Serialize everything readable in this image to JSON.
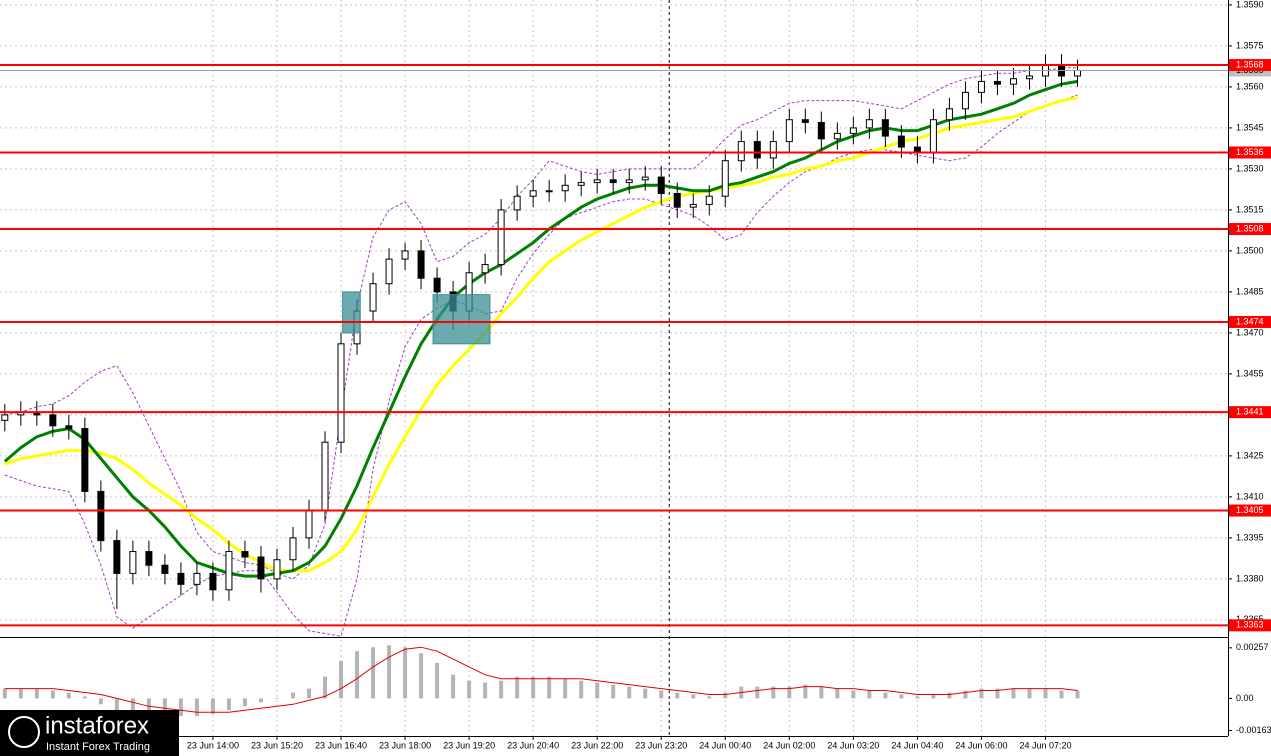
{
  "chart_data": [
    {
      "type": "candlestick",
      "xlim": [
        -0.3,
        76.4
      ],
      "ylim": [
        1.33591,
        1.35918
      ],
      "grid": true,
      "xticks": [
        {
          "value": 13,
          "label": "23 Jun 14:00"
        },
        {
          "value": 17,
          "label": "23 Jun 15:20"
        },
        {
          "value": 21,
          "label": "23 Jun 16:40"
        },
        {
          "value": 25,
          "label": "23 Jun 18:00"
        },
        {
          "value": 29,
          "label": "23 Jun 19:20"
        },
        {
          "value": 33,
          "label": "23 Jun 20:40"
        },
        {
          "value": 37,
          "label": "23 Jun 22:00"
        },
        {
          "value": 41,
          "label": "23 Jun 23:20"
        },
        {
          "value": 45,
          "label": "24 Jun 00:40"
        },
        {
          "value": 49,
          "label": "24 Jun 02:00"
        },
        {
          "value": 53,
          "label": "24 Jun 03:20"
        },
        {
          "value": 57,
          "label": "24 Jun 04:40"
        },
        {
          "value": 61,
          "label": "24 Jun 06:00"
        },
        {
          "value": 65,
          "label": "24 Jun 07:20"
        }
      ],
      "yticks": [
        {
          "value": 1.359,
          "label": "1.3590"
        },
        1.3575,
        {
          "value": 1.356,
          "label": "1.3560"
        },
        1.3545,
        {
          "value": 1.353,
          "label": "1.3530"
        },
        1.3515,
        {
          "value": 1.35,
          "label": "1.3500"
        },
        1.3485,
        {
          "value": 1.347,
          "label": "1.3470"
        },
        1.3455,
        {
          "value": 1.344,
          "label": "1.3440"
        },
        1.3425,
        {
          "value": 1.341,
          "label": "1.3410"
        },
        1.3395,
        {
          "value": 1.338,
          "label": "1.3380"
        },
        1.3365
      ],
      "candles": {
        "up_color": "#ffffff",
        "down_color": "#000000",
        "edge_color": "#000000",
        "open": [
          1.3438,
          1.344,
          1.3441,
          1.344,
          1.3436,
          1.3435,
          1.3412,
          1.3394,
          1.3382,
          1.339,
          1.3385,
          1.3382,
          1.3378,
          1.3382,
          1.3376,
          1.339,
          1.3388,
          1.338,
          1.3387,
          1.3395,
          1.3405,
          1.343,
          1.3466,
          1.3478,
          1.3488,
          1.3497,
          1.35,
          1.349,
          1.3485,
          1.3478,
          1.3492,
          1.3495,
          1.3515,
          1.352,
          1.3522,
          1.3522,
          1.3524,
          1.3525,
          1.3526,
          1.3525,
          1.3526,
          1.3527,
          1.3521,
          1.3516,
          1.3517,
          1.352,
          1.3533,
          1.354,
          1.3534,
          1.354,
          1.3548,
          1.3547,
          1.3541,
          1.3543,
          1.3545,
          1.3548,
          1.3542,
          1.3538,
          1.3536,
          1.3548,
          1.3552,
          1.3558,
          1.3562,
          1.3561,
          1.3563,
          1.3564,
          1.3568,
          1.3564
        ],
        "high": [
          1.3444,
          1.3445,
          1.3445,
          1.3444,
          1.344,
          1.3439,
          1.3416,
          1.3398,
          1.3394,
          1.3394,
          1.3389,
          1.3386,
          1.3386,
          1.3386,
          1.3394,
          1.3394,
          1.3392,
          1.3391,
          1.3399,
          1.3409,
          1.3434,
          1.347,
          1.3482,
          1.3492,
          1.3501,
          1.3503,
          1.3504,
          1.3494,
          1.3489,
          1.3496,
          1.3499,
          1.3519,
          1.3524,
          1.3526,
          1.3526,
          1.3528,
          1.3529,
          1.353,
          1.353,
          1.353,
          1.3531,
          1.3531,
          1.3525,
          1.3521,
          1.3524,
          1.3537,
          1.3544,
          1.3544,
          1.3544,
          1.3552,
          1.3552,
          1.3551,
          1.3547,
          1.3549,
          1.3552,
          1.3552,
          1.3546,
          1.3542,
          1.3552,
          1.3556,
          1.3562,
          1.3566,
          1.3566,
          1.3567,
          1.3568,
          1.3572,
          1.3572,
          1.357
        ],
        "low": [
          1.3434,
          1.3436,
          1.3436,
          1.3432,
          1.3431,
          1.3408,
          1.339,
          1.3369,
          1.3378,
          1.3381,
          1.3378,
          1.3374,
          1.3374,
          1.3372,
          1.3372,
          1.3384,
          1.3375,
          1.3376,
          1.3383,
          1.3391,
          1.3401,
          1.3426,
          1.3462,
          1.3474,
          1.3484,
          1.3493,
          1.3486,
          1.3481,
          1.3471,
          1.3474,
          1.3488,
          1.3491,
          1.3511,
          1.3516,
          1.3518,
          1.3518,
          1.352,
          1.3521,
          1.3521,
          1.3521,
          1.3522,
          1.3517,
          1.3512,
          1.3512,
          1.3513,
          1.3516,
          1.3529,
          1.353,
          1.353,
          1.3536,
          1.3543,
          1.3537,
          1.3537,
          1.3539,
          1.3541,
          1.3538,
          1.3534,
          1.3532,
          1.3532,
          1.3544,
          1.3548,
          1.3554,
          1.3557,
          1.3557,
          1.3559,
          1.356,
          1.356,
          1.356
        ],
        "close": [
          1.344,
          1.3441,
          1.344,
          1.3436,
          1.3435,
          1.3412,
          1.3394,
          1.3382,
          1.339,
          1.3385,
          1.3382,
          1.3378,
          1.3382,
          1.3376,
          1.339,
          1.3388,
          1.338,
          1.3387,
          1.3395,
          1.3405,
          1.343,
          1.3466,
          1.3478,
          1.3488,
          1.3497,
          1.35,
          1.349,
          1.3485,
          1.3478,
          1.3492,
          1.3495,
          1.3515,
          1.352,
          1.3522,
          1.3522,
          1.3524,
          1.3525,
          1.3526,
          1.3525,
          1.3526,
          1.3527,
          1.3521,
          1.3516,
          1.3517,
          1.352,
          1.3533,
          1.354,
          1.3534,
          1.354,
          1.3548,
          1.3547,
          1.3541,
          1.3543,
          1.3545,
          1.3548,
          1.3542,
          1.3538,
          1.3536,
          1.3548,
          1.3552,
          1.3558,
          1.3562,
          1.3561,
          1.3563,
          1.3564,
          1.3568,
          1.3564,
          1.3566
        ]
      },
      "lines": [
        {
          "color": "#ffff00",
          "values": [
            1.3422,
            1.3424,
            1.3425,
            1.3426,
            1.3427,
            1.3427,
            1.3426,
            1.3424,
            1.342,
            1.3415,
            1.3411,
            1.3407,
            1.3402,
            1.3398,
            1.3393,
            1.3389,
            1.3386,
            1.3383,
            1.3383,
            1.3383,
            1.3386,
            1.339,
            1.3398,
            1.341,
            1.3422,
            1.3432,
            1.3442,
            1.3451,
            1.3458,
            1.3464,
            1.347,
            1.3477,
            1.3483,
            1.349,
            1.3496,
            1.35,
            1.3504,
            1.3507,
            1.351,
            1.3513,
            1.3516,
            1.3518,
            1.352,
            1.3521,
            1.3522,
            1.3523,
            1.3524,
            1.3525,
            1.3527,
            1.3528,
            1.353,
            1.3531,
            1.3533,
            1.3534,
            1.3536,
            1.3538,
            1.354,
            1.3541,
            1.3543,
            1.3545,
            1.3546,
            1.3547,
            1.3548,
            1.3549,
            1.3551,
            1.3553,
            1.3555,
            1.3556
          ]
        },
        {
          "color": "#008000",
          "values": [
            1.3423,
            1.3428,
            1.3432,
            1.3434,
            1.3435,
            1.3431,
            1.3424,
            1.3417,
            1.341,
            1.3405,
            1.3399,
            1.3392,
            1.3386,
            1.3384,
            1.3382,
            1.3381,
            1.3381,
            1.3382,
            1.3383,
            1.3386,
            1.3392,
            1.3402,
            1.3414,
            1.3428,
            1.3441,
            1.3454,
            1.3466,
            1.3475,
            1.3483,
            1.3488,
            1.3492,
            1.3495,
            1.3499,
            1.3503,
            1.3508,
            1.3512,
            1.3516,
            1.3519,
            1.3521,
            1.3523,
            1.3524,
            1.3524,
            1.3523,
            1.3522,
            1.3522,
            1.3524,
            1.3525,
            1.3527,
            1.3529,
            1.3532,
            1.3534,
            1.3537,
            1.354,
            1.3542,
            1.3544,
            1.3545,
            1.3544,
            1.3544,
            1.3546,
            1.3548,
            1.3549,
            1.355,
            1.3552,
            1.3554,
            1.3557,
            1.3559,
            1.3561,
            1.3562
          ]
        }
      ],
      "bands": {
        "color": "#a040c0",
        "upper": [
          1.344,
          1.3441,
          1.3443,
          1.3444,
          1.3447,
          1.3452,
          1.3456,
          1.3458,
          1.3448,
          1.3436,
          1.3424,
          1.3412,
          1.3397,
          1.339,
          1.3388,
          1.3386,
          1.3385,
          1.3382,
          1.338,
          1.3385,
          1.34,
          1.344,
          1.348,
          1.3505,
          1.3515,
          1.3518,
          1.351,
          1.3496,
          1.3498,
          1.3503,
          1.3506,
          1.3512,
          1.352,
          1.3526,
          1.3533,
          1.3531,
          1.3529,
          1.3528,
          1.3529,
          1.353,
          1.353,
          1.353,
          1.353,
          1.353,
          1.3535,
          1.3541,
          1.3546,
          1.3548,
          1.3551,
          1.3554,
          1.3555,
          1.3555,
          1.3555,
          1.3555,
          1.3554,
          1.3553,
          1.3552,
          1.3555,
          1.3558,
          1.3561,
          1.3563,
          1.3564,
          1.3565,
          1.3565,
          1.3566,
          1.3566,
          1.3567,
          1.3567
        ],
        "lower": [
          1.3418,
          1.3416,
          1.3414,
          1.3413,
          1.3412,
          1.34,
          1.3385,
          1.3366,
          1.3362,
          1.3366,
          1.337,
          1.3374,
          1.3378,
          1.3381,
          1.3382,
          1.3383,
          1.3383,
          1.3375,
          1.3367,
          1.3361,
          1.336,
          1.3359,
          1.338,
          1.342,
          1.3445,
          1.3465,
          1.3475,
          1.3479,
          1.3482,
          1.348,
          1.3477,
          1.3478,
          1.349,
          1.3499,
          1.3506,
          1.3512,
          1.3514,
          1.3516,
          1.3518,
          1.3519,
          1.3519,
          1.3517,
          1.3515,
          1.3513,
          1.3509,
          1.3504,
          1.3506,
          1.3514,
          1.352,
          1.3525,
          1.3529,
          1.3531,
          1.3534,
          1.3536,
          1.3537,
          1.3537,
          1.3536,
          1.3535,
          1.3534,
          1.3533,
          1.3534,
          1.3538,
          1.3543,
          1.3547,
          1.3551,
          1.3553,
          1.3555,
          1.3557
        ]
      },
      "levels": [
        1.3568,
        1.3536,
        1.3508,
        1.3474,
        1.3441,
        1.3405,
        1.3363
      ],
      "level_color": "#ff0000",
      "last_price": 1.3566,
      "separator_x": 41.5,
      "zones": [
        {
          "x": [
            21.1,
            22.2
          ],
          "y": [
            1.347,
            1.3485
          ]
        },
        {
          "x": [
            26.75,
            30.3
          ],
          "y": [
            1.3466,
            1.3484
          ]
        }
      ],
      "zone_color": "#3a8f96"
    },
    {
      "type": "macd",
      "xlim": [
        -0.3,
        76.4
      ],
      "ylim": [
        -0.00186,
        0.00307
      ],
      "yticks": [
        0.00257,
        {
          "value": 0,
          "label": "0.00"
        },
        -0.00163
      ],
      "color": "#b4b4b4",
      "signal_color": "#e00000",
      "values": [
        0.0005,
        0.0005,
        0.0005,
        0.0004,
        0.0003,
        0.0001,
        -0.0003,
        -0.0006,
        -0.0008,
        -0.0009,
        -0.0009,
        -0.0009,
        -0.0009,
        -0.0008,
        -0.0006,
        -0.0004,
        -0.0002,
        0.0,
        0.0003,
        0.0005,
        0.0011,
        0.0019,
        0.0024,
        0.0026,
        0.0027,
        0.0026,
        0.0023,
        0.0018,
        0.0012,
        0.0009,
        0.0008,
        0.0009,
        0.0011,
        0.0011,
        0.0011,
        0.001,
        0.0009,
        0.0008,
        0.0007,
        0.0006,
        0.0005,
        0.0004,
        0.0003,
        0.0002,
        0.0001,
        0.0003,
        0.0006,
        0.0006,
        0.0006,
        0.0006,
        0.0007,
        0.0006,
        0.0005,
        0.0004,
        0.0004,
        0.0003,
        0.0002,
        0.0001,
        0.0002,
        0.0003,
        0.0004,
        0.0005,
        0.0005,
        0.0005,
        0.0005,
        0.0005,
        0.0004,
        0.0004
      ],
      "signal": [
        0.0005,
        0.0005,
        0.0005,
        0.0005,
        0.0004,
        0.0003,
        0.0002,
        0.0,
        -0.0002,
        -0.0004,
        -0.0005,
        -0.0006,
        -0.0007,
        -0.0007,
        -0.0007,
        -0.0006,
        -0.0005,
        -0.0004,
        -0.0003,
        -0.0001,
        0.0001,
        0.0005,
        0.001,
        0.0016,
        0.0021,
        0.0025,
        0.0026,
        0.0024,
        0.002,
        0.0016,
        0.0012,
        0.001,
        0.001,
        0.001,
        0.001,
        0.001,
        0.001,
        0.0009,
        0.0008,
        0.0007,
        0.0006,
        0.0005,
        0.0004,
        0.0003,
        0.0002,
        0.0002,
        0.0003,
        0.0004,
        0.0005,
        0.0005,
        0.0006,
        0.0006,
        0.0005,
        0.0005,
        0.0004,
        0.0004,
        0.0003,
        0.0002,
        0.0002,
        0.0002,
        0.0003,
        0.0004,
        0.0004,
        0.0005,
        0.0005,
        0.0005,
        0.0005,
        0.0004
      ]
    }
  ],
  "logo": {
    "name": "instaforex",
    "tagline": "Instant Forex Trading"
  }
}
